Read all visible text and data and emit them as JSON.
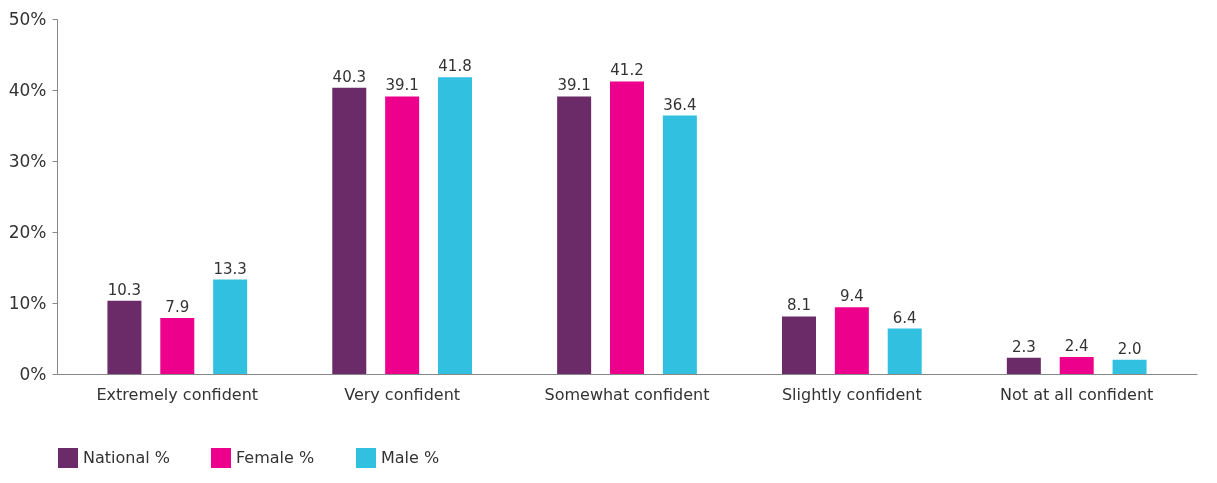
{
  "chart_data": {
    "type": "bar",
    "categories": [
      "Extremely confident",
      "Very confident",
      "Somewhat confident",
      "Slightly confident",
      "Not at all confident"
    ],
    "series": [
      {
        "name": "National %",
        "color": "#6b2a68",
        "values": [
          10.3,
          40.3,
          39.1,
          8.1,
          2.3
        ]
      },
      {
        "name": "Female %",
        "color": "#ec008c",
        "values": [
          7.9,
          39.1,
          41.2,
          9.4,
          2.4
        ]
      },
      {
        "name": "Male %",
        "color": "#31c0e0",
        "values": [
          13.3,
          41.8,
          36.4,
          6.4,
          2.0
        ]
      }
    ],
    "value_labels": [
      [
        "10.3",
        "40.3",
        "39.1",
        "8.1",
        "2.3"
      ],
      [
        "7.9",
        "39.1",
        "41.2",
        "9.4",
        "2.4"
      ],
      [
        "13.3",
        "41.8",
        "36.4",
        "6.4",
        "2.0"
      ]
    ],
    "ylim": [
      0,
      50
    ],
    "yticks": [
      {
        "value": 0,
        "label": "0%"
      },
      {
        "value": 10,
        "label": "10%"
      },
      {
        "value": 20,
        "label": "20%"
      },
      {
        "value": 30,
        "label": "30%"
      },
      {
        "value": 40,
        "label": "40%"
      },
      {
        "value": 50,
        "label": "50%"
      }
    ],
    "grid": false,
    "legend": "bottom left"
  }
}
